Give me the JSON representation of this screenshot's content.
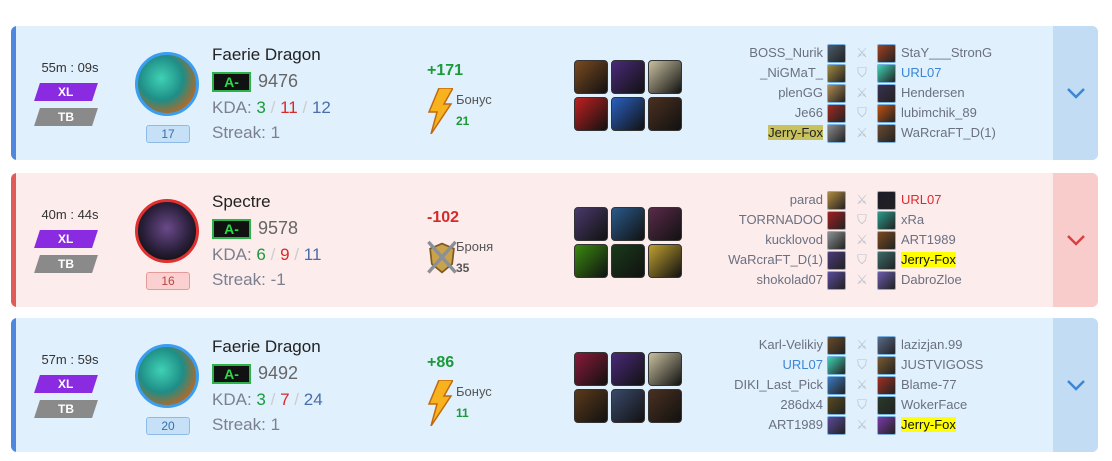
{
  "colors": {
    "win": "#e1f0fd",
    "loss": "#fdecec",
    "link": "#3b86d6",
    "loss_link": "#e0282e",
    "highlight": "#ffff00",
    "highlight_alt": "#c8c25e"
  },
  "matches": [
    {
      "result": "win",
      "time": "55m : 09s",
      "tags": [
        "XL",
        "TB"
      ],
      "level": "17",
      "hero": "Faerie Dragon",
      "rank": "A-",
      "rating": "9476",
      "kda_label": "KDA:",
      "kills": "3",
      "deaths": "11",
      "assists": "12",
      "streak": "Streak: 1",
      "delta": "+171",
      "bonus_icon": "lightning-icon",
      "bonus_name": "Бонус",
      "bonus_value": "21",
      "items": [
        "#7a4a20",
        "#4a2a7a",
        "#c8c0a0",
        "#c02020",
        "#2a60c0",
        "#4a3020"
      ],
      "players": [
        {
          "left": "BOSS_Nurik",
          "lc": "#4a5a6a",
          "vs": "swords",
          "right": "StaY___StronG",
          "rc": "#a04020"
        },
        {
          "left": "_NiGMaT_",
          "lc": "#a08a40",
          "vs": "shield",
          "right": "URL07",
          "rc": "#3fd1b5",
          "rstyle": "lnk"
        },
        {
          "left": "plenGG",
          "lc": "#b08a50",
          "vs": "swords",
          "right": "Hendersen",
          "rc": "#3a3050"
        },
        {
          "left": "Je66",
          "lc": "#a02a20",
          "vs": "shield",
          "right": "lubimchik_89",
          "rc": "#c05010"
        },
        {
          "left": "Jerry-Fox",
          "lc": "#8a8a8a",
          "lstyle": "hl-o",
          "vs": "swords",
          "right": "WaRcraFT_D(1)",
          "rc": "#6a4a30"
        }
      ]
    },
    {
      "result": "loss",
      "time": "40m : 44s",
      "tags": [
        "XL",
        "TB"
      ],
      "level": "16",
      "hero": "Spectre",
      "rank": "A-",
      "rating": "9578",
      "kda_label": "KDA:",
      "kills": "6",
      "deaths": "9",
      "assists": "11",
      "streak": "Streak: -1",
      "delta": "-102",
      "bonus_icon": "crossed-swords-shield-icon",
      "bonus_name": "Броня",
      "bonus_value": "35",
      "items": [
        "#4a3a6a",
        "#2a5a8a",
        "#5a2a4a",
        "#3a8a10",
        "#1a3a1a",
        "#c0a030"
      ],
      "players": [
        {
          "left": "parad",
          "lc": "#b08a40",
          "vs": "swords",
          "right": "URL07",
          "rc": "#1a1a2a",
          "rstyle": "lnkr"
        },
        {
          "left": "TORRNADOO",
          "lc": "#a02020",
          "vs": "shield",
          "right": "xRa",
          "rc": "#2a9a8a"
        },
        {
          "left": "kucklovod",
          "lc": "#8a9090",
          "vs": "swords",
          "right": "ART1989",
          "rc": "#7a4a20"
        },
        {
          "left": "WaRcraFT_D(1)",
          "lc": "#4a3a7a",
          "vs": "shield",
          "right": "Jerry-Fox",
          "rc": "#3a6a6a",
          "rstyle": "hl-y"
        },
        {
          "left": "shokolad07",
          "lc": "#5a4a9a",
          "vs": "swords",
          "right": "DabroZloe",
          "rc": "#6a5aaa"
        }
      ]
    },
    {
      "result": "win",
      "time": "57m : 59s",
      "tags": [
        "XL",
        "TB"
      ],
      "level": "20",
      "hero": "Faerie Dragon",
      "rank": "A-",
      "rating": "9492",
      "kda_label": "KDA:",
      "kills": "3",
      "deaths": "7",
      "assists": "24",
      "streak": "Streak: 1",
      "delta": "+86",
      "bonus_icon": "lightning-icon",
      "bonus_name": "Бонус",
      "bonus_value": "11",
      "items": [
        "#8a1a3a",
        "#4a2a7a",
        "#c8c0a0",
        "#5a3a1a",
        "#3a4a6a",
        "#4a3020"
      ],
      "players": [
        {
          "left": "Karl-Velikiy",
          "lc": "#6a4a2a",
          "vs": "swords",
          "right": "lazizjan.99",
          "rc": "#5a6a8a"
        },
        {
          "left": "URL07",
          "lc": "#3fd1b5",
          "lstyle": "lnk",
          "vs": "shield",
          "right": "JUSTVIGOSS",
          "rc": "#7a5a30"
        },
        {
          "left": "DIKI_Last_Pick",
          "lc": "#3a7ac0",
          "vs": "swords",
          "right": "Blame-77",
          "rc": "#a03020"
        },
        {
          "left": "286dx4",
          "lc": "#5a4a20",
          "vs": "shield",
          "right": "WokerFace",
          "rc": "#2a3a2a"
        },
        {
          "left": "ART1989",
          "lc": "#5a4a9a",
          "vs": "swords",
          "right": "Jerry-Fox",
          "rc": "#7a3aaa",
          "rstyle": "hl-y"
        }
      ]
    }
  ]
}
